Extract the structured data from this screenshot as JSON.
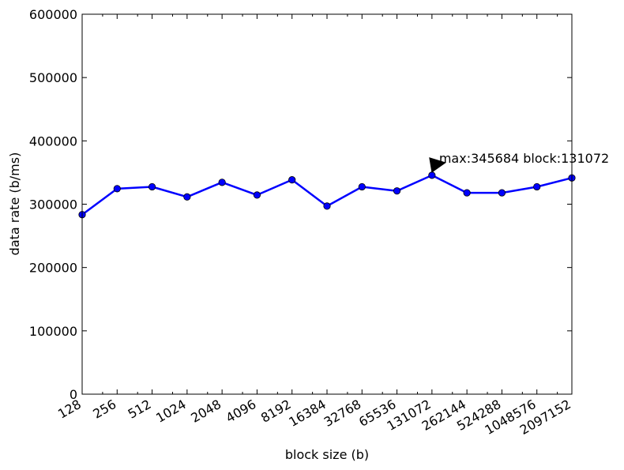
{
  "chart_data": {
    "type": "line",
    "title": "",
    "xlabel": "block size (b)",
    "ylabel": "data rate (b/ms)",
    "x_scale": "log2",
    "x": [
      128,
      256,
      512,
      1024,
      2048,
      4096,
      8192,
      16384,
      32768,
      65536,
      131072,
      262144,
      524288,
      1048576,
      2097152
    ],
    "x_tick_labels": [
      "128",
      "256",
      "512",
      "1024",
      "2048",
      "4096",
      "8192",
      "16384",
      "32768",
      "65536",
      "131072",
      "262144",
      "524288",
      "1048576",
      "2097152"
    ],
    "series": [
      {
        "values": [
          283500,
          324500,
          327500,
          311500,
          334500,
          314500,
          338500,
          297000,
          327500,
          321000,
          345684,
          318000,
          318000,
          327500,
          341500
        ],
        "color": "#0000ff",
        "marker": "circle"
      }
    ],
    "ylim": [
      0,
      600000
    ],
    "y_ticks": [
      0,
      100000,
      200000,
      300000,
      400000,
      500000,
      600000
    ],
    "y_tick_labels": [
      "0",
      "100000",
      "200000",
      "300000",
      "400000",
      "500000",
      "600000"
    ],
    "grid": false,
    "legend": "none",
    "annotation": {
      "text": "max:345684 block:131072",
      "x": 131072,
      "y": 345684
    }
  }
}
